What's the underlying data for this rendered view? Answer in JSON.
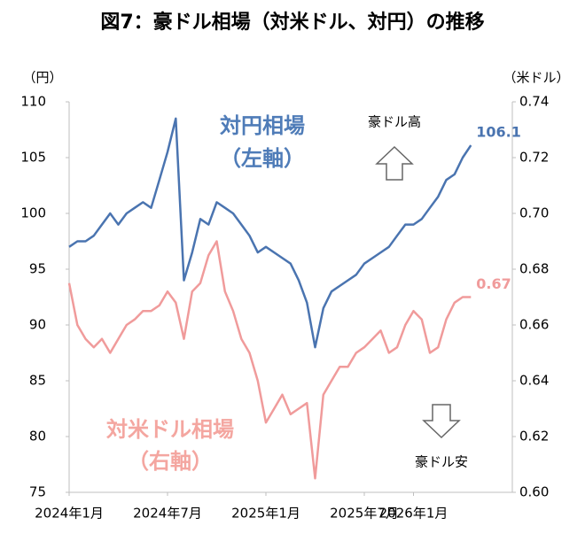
{
  "chart_data": {
    "type": "line",
    "title": "図7：豪ドル相場（対米ドル、対円）の推移",
    "y_unit": "（円）",
    "y2_unit": "（米ドル）",
    "annotations": {
      "left_axis": "（左軸）",
      "right_axis": "（右軸）",
      "up": "豪ドル高",
      "down": "豪ドル安"
    },
    "categories": [
      "2024年1月",
      null,
      null,
      null,
      null,
      null,
      null,
      null,
      null,
      null,
      null,
      null,
      "2024年7月",
      null,
      null,
      null,
      null,
      null,
      null,
      null,
      null,
      null,
      null,
      null,
      "2025年1月",
      null,
      null,
      null,
      null,
      null,
      null,
      null,
      null,
      null,
      null,
      null,
      "2025年7月",
      null,
      null,
      null,
      null,
      null,
      "2026年1月",
      null,
      null,
      null,
      null,
      null,
      null,
      null
    ],
    "ylim": [
      75,
      110
    ],
    "yticks": [
      75,
      80,
      85,
      90,
      95,
      100,
      105,
      110
    ],
    "y2lim": [
      0.6,
      0.74
    ],
    "y2ticks": [
      {
        "value": 0.6,
        "label": "0.60"
      },
      0.62,
      0.64,
      0.66,
      0.68,
      {
        "value": 0.7,
        "label": "0.70"
      },
      0.72,
      0.74
    ],
    "grid": false,
    "series": [
      {
        "name": "対円相場",
        "color": "#4a74b0",
        "axis": "y",
        "values": [
          97,
          97.5,
          97.5,
          98,
          99,
          100,
          99,
          100,
          100.5,
          101,
          100.5,
          103,
          105.5,
          108.5,
          94,
          96.5,
          99.5,
          99,
          101,
          100.5,
          100,
          99,
          98,
          96.5,
          97,
          96.5,
          96,
          95.5,
          94,
          92,
          88,
          91.5,
          93,
          93.5,
          94,
          94.5,
          95.5,
          96,
          96.5,
          97,
          98,
          99,
          99,
          99.5,
          100.5,
          101.5,
          103,
          103.5,
          105,
          106.1
        ]
      },
      {
        "name": "対米ドル相場",
        "color": "#f09b9b",
        "axis": "y2",
        "values": [
          0.675,
          0.66,
          0.655,
          0.652,
          0.655,
          0.65,
          0.655,
          0.66,
          0.662,
          0.665,
          0.665,
          0.667,
          0.672,
          0.668,
          0.655,
          0.672,
          0.675,
          0.685,
          0.69,
          0.672,
          0.665,
          0.655,
          0.65,
          0.64,
          0.625,
          0.63,
          0.635,
          0.628,
          0.63,
          0.632,
          0.605,
          0.635,
          0.64,
          0.645,
          0.645,
          0.65,
          0.652,
          0.655,
          0.658,
          0.65,
          0.652,
          0.66,
          0.665,
          0.662,
          0.65,
          0.652,
          0.662,
          0.668,
          0.67,
          0.67
        ]
      }
    ]
  }
}
